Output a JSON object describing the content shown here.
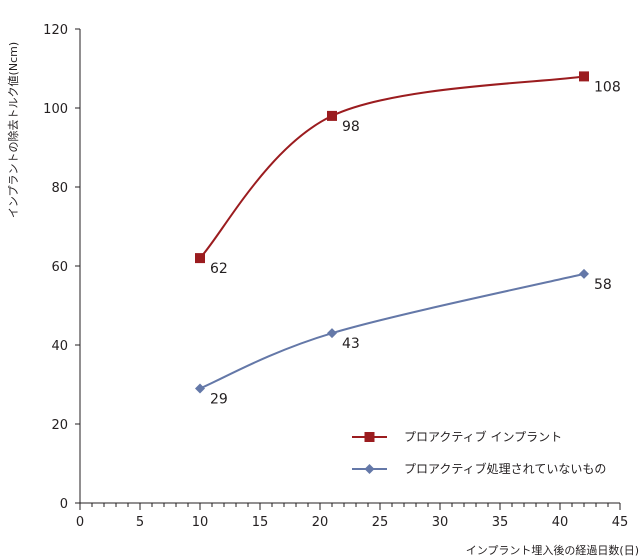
{
  "chart_data": {
    "type": "line",
    "title": "",
    "xlabel": "インプラント埋入後の経過日数(日)",
    "ylabel": "インプラントの除去トルク値(Ncm)",
    "xlim": [
      0,
      45
    ],
    "ylim": [
      0,
      120
    ],
    "x_ticks": [
      "0",
      "5",
      "10",
      "15",
      "20",
      "25",
      "30",
      "35",
      "40",
      "45"
    ],
    "y_ticks": [
      "0",
      "20",
      "40",
      "60",
      "80",
      "100",
      "120"
    ],
    "grid": false,
    "legend_position": "bottom-right",
    "series": [
      {
        "name": "プロアクティブ インプラント",
        "marker": "square",
        "color": "#9b1c1f",
        "x": [
          10,
          21,
          42
        ],
        "values": [
          62,
          98,
          108
        ],
        "labels": [
          "62",
          "98",
          "108"
        ]
      },
      {
        "name": "プロアクティブ処理されていないもの",
        "marker": "diamond",
        "color": "#6478a8",
        "x": [
          10,
          21,
          42
        ],
        "values": [
          29,
          43,
          58
        ],
        "labels": [
          "29",
          "43",
          "58"
        ]
      }
    ]
  }
}
